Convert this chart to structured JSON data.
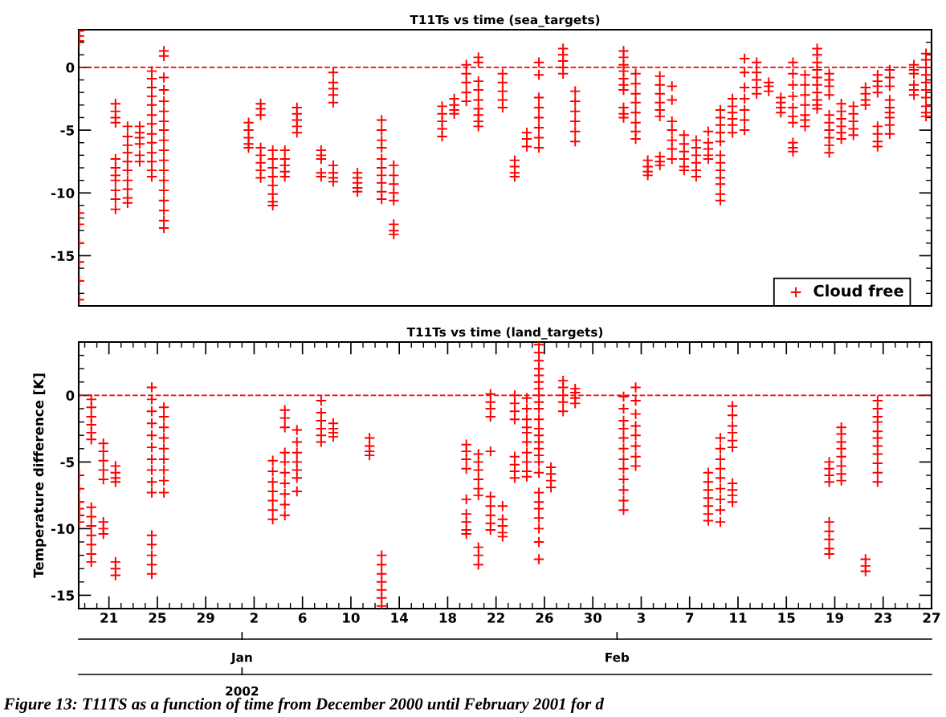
{
  "chart_data": [
    {
      "type": "scatter",
      "title": "T11Ts vs time (sea_targets)",
      "marker": "cross",
      "legend": "bottom right",
      "tick_labels": "y",
      "xlim": [
        "2001-12-18T12:00",
        "2002-02-27T00:00"
      ],
      "ylim": [
        -19,
        3
      ],
      "yticks": [
        -15,
        -10,
        -5,
        0
      ],
      "ref_lines": [
        {
          "axis": "y",
          "value": 0,
          "color": "#ff0000",
          "line_style": "dashed"
        }
      ],
      "series": [
        {
          "name": "Cloud free",
          "color": "#ff0000",
          "x": [
            "2001-12-18T13:00",
            "2001-12-18T13:00",
            "2001-12-18T13:00",
            "2001-12-18T13:00",
            "2001-12-18T13:00",
            "2001-12-18T13:00",
            "2001-12-18T13:00",
            "2001-12-18T13:00",
            "2001-12-18T13:00",
            "2001-12-21T13:00",
            "2001-12-21T13:00",
            "2001-12-21T13:00",
            "2001-12-21T13:00",
            "2001-12-21T13:00",
            "2001-12-21T13:00",
            "2001-12-21T13:00",
            "2001-12-21T13:00",
            "2001-12-21T13:00",
            "2001-12-21T13:00",
            "2001-12-21T13:00",
            "2001-12-22T13:00",
            "2001-12-22T13:00",
            "2001-12-22T13:00",
            "2001-12-22T13:00",
            "2001-12-22T13:00",
            "2001-12-22T13:00",
            "2001-12-22T13:00",
            "2001-12-22T13:00",
            "2001-12-22T13:00",
            "2001-12-22T13:00",
            "2001-12-23T13:00",
            "2001-12-23T13:00",
            "2001-12-23T13:00",
            "2001-12-23T13:00",
            "2001-12-23T13:00",
            "2001-12-23T13:00",
            "2001-12-24T13:00",
            "2001-12-24T13:00",
            "2001-12-24T13:00",
            "2001-12-24T13:00",
            "2001-12-24T13:00",
            "2001-12-24T13:00",
            "2001-12-24T13:00",
            "2001-12-24T13:00",
            "2001-12-24T13:00",
            "2001-12-24T13:00",
            "2001-12-24T13:00",
            "2001-12-24T13:00",
            "2001-12-24T13:00",
            "2001-12-25T13:00",
            "2001-12-25T13:00",
            "2001-12-25T13:00",
            "2001-12-25T13:00",
            "2001-12-25T13:00",
            "2001-12-25T13:00",
            "2001-12-25T13:00",
            "2001-12-25T13:00",
            "2001-12-25T13:00",
            "2001-12-25T13:00",
            "2001-12-25T13:00",
            "2001-12-25T13:00",
            "2001-12-25T13:00",
            "2001-12-25T13:00",
            "2001-12-25T13:00",
            "2001-12-25T13:00",
            "2001-12-25T13:00",
            "2001-12-25T13:00",
            "2002-01-01T13:00",
            "2002-01-01T13:00",
            "2002-01-01T13:00",
            "2002-01-01T13:00",
            "2002-01-01T13:00",
            "2002-01-02T13:00",
            "2002-01-02T13:00",
            "2002-01-02T13:00",
            "2002-01-02T13:00",
            "2002-01-02T13:00",
            "2002-01-02T13:00",
            "2002-01-02T13:00",
            "2002-01-02T13:00",
            "2002-01-03T13:00",
            "2002-01-03T13:00",
            "2002-01-03T13:00",
            "2002-01-03T13:00",
            "2002-01-03T13:00",
            "2002-01-03T13:00",
            "2002-01-03T13:00",
            "2002-01-03T13:00",
            "2002-01-04T13:00",
            "2002-01-04T13:00",
            "2002-01-04T13:00",
            "2002-01-04T13:00",
            "2002-01-04T13:00",
            "2002-01-05T13:00",
            "2002-01-05T13:00",
            "2002-01-05T13:00",
            "2002-01-05T13:00",
            "2002-01-05T13:00",
            "2002-01-07T13:00",
            "2002-01-07T13:00",
            "2002-01-07T13:00",
            "2002-01-07T13:00",
            "2002-01-07T13:00",
            "2002-01-08T13:00",
            "2002-01-08T13:00",
            "2002-01-08T13:00",
            "2002-01-08T13:00",
            "2002-01-08T13:00",
            "2002-01-08T13:00",
            "2002-01-08T13:00",
            "2002-01-08T13:00",
            "2002-01-08T13:00",
            "2002-01-10T13:00",
            "2002-01-10T13:00",
            "2002-01-10T13:00",
            "2002-01-10T13:00",
            "2002-01-10T13:00",
            "2002-01-12T13:00",
            "2002-01-12T13:00",
            "2002-01-12T13:00",
            "2002-01-12T13:00",
            "2002-01-12T13:00",
            "2002-01-12T13:00",
            "2002-01-12T13:00",
            "2002-01-12T13:00",
            "2002-01-12T13:00",
            "2002-01-12T13:00",
            "2002-01-13T13:00",
            "2002-01-13T13:00",
            "2002-01-13T13:00",
            "2002-01-13T13:00",
            "2002-01-13T13:00",
            "2002-01-13T13:00",
            "2002-01-13T13:00",
            "2002-01-13T13:00",
            "2002-01-17T13:00",
            "2002-01-17T13:00",
            "2002-01-17T13:00",
            "2002-01-17T13:00",
            "2002-01-17T13:00",
            "2002-01-18T13:00",
            "2002-01-18T13:00",
            "2002-01-18T13:00",
            "2002-01-18T13:00",
            "2002-01-19T13:00",
            "2002-01-19T13:00",
            "2002-01-19T13:00",
            "2002-01-19T13:00",
            "2002-01-19T13:00",
            "2002-01-20T13:00",
            "2002-01-20T13:00",
            "2002-01-20T13:00",
            "2002-01-20T13:00",
            "2002-01-20T13:00",
            "2002-01-20T13:00",
            "2002-01-20T13:00",
            "2002-01-20T13:00",
            "2002-01-20T13:00",
            "2002-01-22T13:00",
            "2002-01-22T13:00",
            "2002-01-22T13:00",
            "2002-01-22T13:00",
            "2002-01-22T13:00",
            "2002-01-23T13:00",
            "2002-01-23T13:00",
            "2002-01-23T13:00",
            "2002-01-23T13:00",
            "2002-01-24T13:00",
            "2002-01-24T13:00",
            "2002-01-24T13:00",
            "2002-01-25T13:00",
            "2002-01-25T13:00",
            "2002-01-25T13:00",
            "2002-01-25T13:00",
            "2002-01-25T13:00",
            "2002-01-25T13:00",
            "2002-01-25T13:00",
            "2002-01-25T13:00",
            "2002-01-27T13:00",
            "2002-01-27T13:00",
            "2002-01-27T13:00",
            "2002-01-27T13:00",
            "2002-01-27T13:00",
            "2002-01-28T13:00",
            "2002-01-28T13:00",
            "2002-01-28T13:00",
            "2002-01-28T13:00",
            "2002-01-28T13:00",
            "2002-01-28T13:00",
            "2002-02-01T13:00",
            "2002-02-01T13:00",
            "2002-02-01T13:00",
            "2002-02-01T13:00",
            "2002-02-01T13:00",
            "2002-02-01T13:00",
            "2002-02-01T13:00",
            "2002-02-01T13:00",
            "2002-02-01T13:00",
            "2002-02-01T13:00",
            "2002-02-02T13:00",
            "2002-02-02T13:00",
            "2002-02-02T13:00",
            "2002-02-02T13:00",
            "2002-02-02T13:00",
            "2002-02-02T13:00",
            "2002-02-02T13:00",
            "2002-02-02T13:00",
            "2002-02-03T13:00",
            "2002-02-03T13:00",
            "2002-02-03T13:00",
            "2002-02-03T13:00",
            "2002-02-04T13:00",
            "2002-02-04T13:00",
            "2002-02-04T13:00",
            "2002-02-04T13:00",
            "2002-02-04T13:00",
            "2002-02-04T13:00",
            "2002-02-04T13:00",
            "2002-02-04T13:00",
            "2002-02-04T13:00",
            "2002-02-05T13:00",
            "2002-02-05T13:00",
            "2002-02-05T13:00",
            "2002-02-05T13:00",
            "2002-02-05T13:00",
            "2002-02-05T13:00",
            "2002-02-05T13:00",
            "2002-02-06T13:00",
            "2002-02-06T13:00",
            "2002-02-06T13:00",
            "2002-02-06T13:00",
            "2002-02-06T13:00",
            "2002-02-06T13:00",
            "2002-02-07T13:00",
            "2002-02-07T13:00",
            "2002-02-07T13:00",
            "2002-02-07T13:00",
            "2002-02-07T13:00",
            "2002-02-07T13:00",
            "2002-02-08T13:00",
            "2002-02-08T13:00",
            "2002-02-08T13:00",
            "2002-02-08T13:00",
            "2002-02-08T13:00",
            "2002-02-09T13:00",
            "2002-02-09T13:00",
            "2002-02-09T13:00",
            "2002-02-09T13:00",
            "2002-02-09T13:00",
            "2002-02-09T13:00",
            "2002-02-09T13:00",
            "2002-02-09T13:00",
            "2002-02-09T13:00",
            "2002-02-09T13:00",
            "2002-02-09T13:00",
            "2002-02-09T13:00",
            "2002-02-10T13:00",
            "2002-02-10T13:00",
            "2002-02-10T13:00",
            "2002-02-10T13:00",
            "2002-02-10T13:00",
            "2002-02-10T13:00",
            "2002-02-11T13:00",
            "2002-02-11T13:00",
            "2002-02-11T13:00",
            "2002-02-11T13:00",
            "2002-02-11T13:00",
            "2002-02-11T13:00",
            "2002-02-11T13:00",
            "2002-02-12T13:00",
            "2002-02-12T13:00",
            "2002-02-12T13:00",
            "2002-02-12T13:00",
            "2002-02-12T13:00",
            "2002-02-13T13:00",
            "2002-02-13T13:00",
            "2002-02-13T13:00",
            "2002-02-14T13:00",
            "2002-02-14T13:00",
            "2002-02-14T13:00",
            "2002-02-14T13:00",
            "2002-02-15T13:00",
            "2002-02-15T13:00",
            "2002-02-15T13:00",
            "2002-02-15T13:00",
            "2002-02-15T13:00",
            "2002-02-15T13:00",
            "2002-02-15T13:00",
            "2002-02-15T13:00",
            "2002-02-15T13:00",
            "2002-02-15T13:00",
            "2002-02-16T13:00",
            "2002-02-16T13:00",
            "2002-02-16T13:00",
            "2002-02-16T13:00",
            "2002-02-16T13:00",
            "2002-02-16T13:00",
            "2002-02-16T13:00",
            "2002-02-17T13:00",
            "2002-02-17T13:00",
            "2002-02-17T13:00",
            "2002-02-17T13:00",
            "2002-02-17T13:00",
            "2002-02-17T13:00",
            "2002-02-17T13:00",
            "2002-02-17T13:00",
            "2002-02-17T13:00",
            "2002-02-17T13:00",
            "2002-02-18T13:00",
            "2002-02-18T13:00",
            "2002-02-18T13:00",
            "2002-02-18T13:00",
            "2002-02-18T13:00",
            "2002-02-18T13:00",
            "2002-02-18T13:00",
            "2002-02-18T13:00",
            "2002-02-18T13:00",
            "2002-02-18T13:00",
            "2002-02-19T13:00",
            "2002-02-19T13:00",
            "2002-02-19T13:00",
            "2002-02-19T13:00",
            "2002-02-19T13:00",
            "2002-02-19T13:00",
            "2002-02-20T13:00",
            "2002-02-20T13:00",
            "2002-02-20T13:00",
            "2002-02-20T13:00",
            "2002-02-20T13:00",
            "2002-02-21T13:00",
            "2002-02-21T13:00",
            "2002-02-21T13:00",
            "2002-02-21T13:00",
            "2002-02-22T13:00",
            "2002-02-22T13:00",
            "2002-02-22T13:00",
            "2002-02-22T13:00",
            "2002-02-22T13:00",
            "2002-02-22T13:00",
            "2002-02-22T13:00",
            "2002-02-22T13:00",
            "2002-02-23T13:00",
            "2002-02-23T13:00",
            "2002-02-23T13:00",
            "2002-02-23T13:00",
            "2002-02-23T13:00",
            "2002-02-23T13:00",
            "2002-02-23T13:00",
            "2002-02-23T13:00",
            "2002-02-23T13:00",
            "2002-02-25T13:00",
            "2002-02-25T13:00",
            "2002-02-25T13:00",
            "2002-02-25T13:00",
            "2002-02-25T13:00",
            "2002-02-25T13:00",
            "2002-02-26T13:00",
            "2002-02-26T13:00",
            "2002-02-26T13:00",
            "2002-02-26T13:00",
            "2002-02-26T13:00",
            "2002-02-26T13:00",
            "2002-02-26T13:00",
            "2002-02-26T13:00",
            "2002-02-26T13:00",
            "2002-02-26T13:00"
          ],
          "values": [
            2.9,
            2.5,
            2.1,
            -11.6,
            -12.5,
            -14,
            -15.5,
            -17,
            -18.5,
            -2.9,
            -3.5,
            -4.0,
            -4.4,
            -7.3,
            -8.0,
            -8.6,
            -9.0,
            -9.8,
            -10.5,
            -11.3,
            -4.7,
            -5.5,
            -6.2,
            -6.8,
            -7.5,
            -8.2,
            -9.0,
            -9.7,
            -10.4,
            -10.8,
            -4.7,
            -5.2,
            -5.6,
            -6.1,
            -7.0,
            -7.5,
            -0.3,
            -0.9,
            -1.6,
            -2.3,
            -3,
            -3.8,
            -4.5,
            -5.3,
            -6,
            -6.8,
            -7.5,
            -8.2,
            -8.7,
            1.3,
            0.9,
            -0.8,
            -1.8,
            -2.7,
            -3.5,
            -4.3,
            -5,
            -5.8,
            -6.6,
            -7.4,
            -8.2,
            -9,
            -9.8,
            -10.6,
            -11.4,
            -12.2,
            -12.8,
            -4.4,
            -5,
            -5.6,
            -6.1,
            -6.4,
            -2.9,
            -3.3,
            -3.8,
            -6.4,
            -7.0,
            -7.6,
            -8.2,
            -8.8,
            -6.6,
            -7.3,
            -8,
            -8.7,
            -9.4,
            -10.1,
            -10.7,
            -11,
            -6.6,
            -7.3,
            -7.8,
            -8.3,
            -8.7,
            -3.2,
            -3.7,
            -4.2,
            -4.7,
            -5.2,
            -6.6,
            -7,
            -7.3,
            -8.4,
            -8.7,
            -0.4,
            -1.2,
            -1.7,
            -2.2,
            -2.8,
            -7.8,
            -8.4,
            -8.8,
            -9.1,
            -8.4,
            -8.8,
            -9.2,
            -9.6,
            -9.9,
            -4.2,
            -5,
            -5.8,
            -6.4,
            -7.3,
            -8,
            -8.6,
            -9.2,
            -9.9,
            -10.5,
            -7.8,
            -8.6,
            -9.3,
            -10,
            -10.6,
            -12.5,
            -13,
            -13.3,
            -3.1,
            -3.7,
            -4.3,
            -4.9,
            -5.5,
            -2.5,
            -3,
            -3.4,
            -3.7,
            0.2,
            -0.5,
            -1.2,
            -2,
            -2.7,
            0.8,
            0.4,
            -1.1,
            -1.8,
            -2.6,
            -3.3,
            -3.8,
            -4.3,
            -4.7,
            -0.5,
            -1.2,
            -1.9,
            -2.6,
            -3.2,
            -7.4,
            -7.9,
            -8.4,
            -8.7,
            -5.2,
            -5.7,
            -6.3,
            0.4,
            -0.6,
            -2.4,
            -3.2,
            -4,
            -4.8,
            -5.6,
            -6.4,
            1.5,
            1,
            0.5,
            0,
            -0.5,
            -1.9,
            -2.7,
            -3.5,
            -4.3,
            -5.1,
            -5.9,
            1.3,
            0.8,
            0.2,
            -0.3,
            -0.9,
            -1.4,
            -1.8,
            -3.2,
            -3.7,
            -4,
            -0.5,
            -1.3,
            -2.1,
            -2.8,
            -3.6,
            -4.4,
            -5.1,
            -5.7,
            -7.4,
            -7.9,
            -8.3,
            -8.6,
            -0.7,
            -1.4,
            -2.1,
            -2.8,
            -3.4,
            -3.9,
            -7.1,
            -7.5,
            -7.8,
            -1.5,
            -2.6,
            -4.3,
            -5,
            -5.8,
            -6.5,
            -7.3,
            -5.4,
            -6.1,
            -6.7,
            -7.3,
            -7.9,
            -8.2,
            -5.8,
            -6.4,
            -7,
            -7.6,
            -8.2,
            -8.7,
            -5.1,
            -6,
            -6.5,
            -7,
            -7.3,
            -3.4,
            -4,
            -4.6,
            -5.2,
            -5.9,
            -7,
            -7.6,
            -8.2,
            -8.8,
            -9.3,
            -10.1,
            -10.6,
            -2.5,
            -3.1,
            -3.6,
            -4.1,
            -4.6,
            -5.2,
            0.7,
            -0.4,
            -1.6,
            -2.5,
            -3.4,
            -4.2,
            -5,
            0.4,
            -0.4,
            -1,
            -1.6,
            -2.1,
            -1.2,
            -1.5,
            -1.9,
            -2.4,
            -2.8,
            -3.2,
            -3.6,
            0.4,
            -0.5,
            -1.4,
            -2.3,
            -3.2,
            -3.9,
            -4.4,
            -6,
            -6.4,
            -6.7,
            -0.6,
            -1.4,
            -2.2,
            -3,
            -3.8,
            -4.2,
            -4.7,
            1.5,
            1,
            0.4,
            -0.2,
            -0.8,
            -1.4,
            -2,
            -2.6,
            -3,
            -3.3,
            -0.5,
            -1,
            -1.5,
            -2.2,
            -3.8,
            -4.4,
            -5,
            -5.6,
            -6.2,
            -6.8,
            -2.9,
            -3.5,
            -4.1,
            -4.7,
            -5.2,
            -5.7,
            -3.1,
            -3.7,
            -4.3,
            -4.9,
            -5.4,
            -1.6,
            -2.1,
            -2.6,
            -3.0,
            -0.6,
            -1.1,
            -1.5,
            -2,
            -4.7,
            -5.3,
            -5.9,
            -6.3,
            -0.2,
            -0.8,
            -1.5,
            -2.6,
            -3.2,
            -3.6,
            -4,
            -4.6,
            -5.3,
            0.2,
            -0.2,
            -0.5,
            -1.4,
            -1.8,
            -2.2,
            1.1,
            0.6,
            0,
            -0.6,
            -1.2,
            -1.8,
            -2.4,
            -3.1,
            -3.6,
            -3.9
          ]
        }
      ]
    },
    {
      "type": "scatter",
      "title": "T11Ts vs time (land_targets)",
      "ylabel": "Temperature difference [K]",
      "marker": "cross",
      "xlim": [
        "2001-12-18T12:00",
        "2002-02-27T00:00"
      ],
      "ylim": [
        -16,
        4
      ],
      "yticks": [
        -15,
        -10,
        -5,
        0
      ],
      "xticks": [
        {
          "value": "2001-12-21",
          "label": "21"
        },
        {
          "value": "2001-12-25",
          "label": "25"
        },
        {
          "value": "2001-12-29",
          "label": "29"
        },
        {
          "value": "2002-01-02",
          "label": "2"
        },
        {
          "value": "2002-01-06",
          "label": "6"
        },
        {
          "value": "2002-01-10",
          "label": "10"
        },
        {
          "value": "2002-01-14",
          "label": "14"
        },
        {
          "value": "2002-01-18",
          "label": "18"
        },
        {
          "value": "2002-01-22",
          "label": "22"
        },
        {
          "value": "2002-01-26",
          "label": "26"
        },
        {
          "value": "2002-01-30",
          "label": "30"
        },
        {
          "value": "2002-02-03",
          "label": "3"
        },
        {
          "value": "2002-02-07",
          "label": "7"
        },
        {
          "value": "2002-02-11",
          "label": "11"
        },
        {
          "value": "2002-02-15",
          "label": "15"
        },
        {
          "value": "2002-02-19",
          "label": "19"
        },
        {
          "value": "2002-02-23",
          "label": "23"
        },
        {
          "value": "2002-02-27",
          "label": "27"
        }
      ],
      "ref_lines": [
        {
          "axis": "y",
          "value": 0,
          "color": "#ff0000",
          "line_style": "dashed"
        }
      ],
      "annotations": [
        "Jan",
        "Feb",
        "2002",
        "Figure 13: T11TS as a function of time from December 2000 until February 2001 for d"
      ],
      "series": [
        {
          "color": "#ff0000",
          "x": [
            "2001-12-18T13:00",
            "2001-12-18T13:00",
            "2001-12-18T13:00",
            "2001-12-18T13:00",
            "2001-12-18T13:00",
            "2001-12-18T13:00",
            "2001-12-19T13:00",
            "2001-12-19T13:00",
            "2001-12-19T13:00",
            "2001-12-19T13:00",
            "2001-12-19T13:00",
            "2001-12-19T13:00",
            "2001-12-19T13:00",
            "2001-12-19T13:00",
            "2001-12-19T13:00",
            "2001-12-19T13:00",
            "2001-12-19T13:00",
            "2001-12-19T13:00",
            "2001-12-19T13:00",
            "2001-12-20T13:00",
            "2001-12-20T13:00",
            "2001-12-20T13:00",
            "2001-12-20T13:00",
            "2001-12-20T13:00",
            "2001-12-20T13:00",
            "2001-12-20T13:00",
            "2001-12-20T13:00",
            "2001-12-21T13:00",
            "2001-12-21T13:00",
            "2001-12-21T13:00",
            "2001-12-21T13:00",
            "2001-12-21T13:00",
            "2001-12-21T13:00",
            "2001-12-21T13:00",
            "2001-12-24T13:00",
            "2001-12-24T13:00",
            "2001-12-24T13:00",
            "2001-12-24T13:00",
            "2001-12-24T13:00",
            "2001-12-24T13:00",
            "2001-12-24T13:00",
            "2001-12-24T13:00",
            "2001-12-24T13:00",
            "2001-12-24T13:00",
            "2001-12-24T13:00",
            "2001-12-24T13:00",
            "2001-12-24T13:00",
            "2001-12-24T13:00",
            "2001-12-24T13:00",
            "2001-12-25T13:00",
            "2001-12-25T13:00",
            "2001-12-25T13:00",
            "2001-12-25T13:00",
            "2001-12-25T13:00",
            "2001-12-25T13:00",
            "2001-12-25T13:00",
            "2001-12-25T13:00",
            "2001-12-25T13:00",
            "2002-01-03T13:00",
            "2002-01-03T13:00",
            "2002-01-03T13:00",
            "2002-01-03T13:00",
            "2002-01-03T13:00",
            "2002-01-03T13:00",
            "2002-01-03T13:00",
            "2002-01-04T13:00",
            "2002-01-04T13:00",
            "2002-01-04T13:00",
            "2002-01-04T13:00",
            "2002-01-04T13:00",
            "2002-01-04T13:00",
            "2002-01-04T13:00",
            "2002-01-04T13:00",
            "2002-01-04T13:00",
            "2002-01-04T13:00",
            "2002-01-05T13:00",
            "2002-01-05T13:00",
            "2002-01-05T13:00",
            "2002-01-05T13:00",
            "2002-01-05T13:00",
            "2002-01-05T13:00",
            "2002-01-05T13:00",
            "2002-01-07T13:00",
            "2002-01-07T13:00",
            "2002-01-07T13:00",
            "2002-01-07T13:00",
            "2002-01-07T13:00",
            "2002-01-07T13:00",
            "2002-01-08T13:00",
            "2002-01-08T13:00",
            "2002-01-08T13:00",
            "2002-01-08T13:00",
            "2002-01-11T13:00",
            "2002-01-11T13:00",
            "2002-01-11T13:00",
            "2002-01-11T13:00",
            "2002-01-12T13:00",
            "2002-01-12T13:00",
            "2002-01-12T13:00",
            "2002-01-12T13:00",
            "2002-01-12T13:00",
            "2002-01-12T13:00",
            "2002-01-12T13:00",
            "2002-01-19T13:00",
            "2002-01-19T13:00",
            "2002-01-19T13:00",
            "2002-01-19T13:00",
            "2002-01-19T13:00",
            "2002-01-19T13:00",
            "2002-01-19T13:00",
            "2002-01-19T13:00",
            "2002-01-19T13:00",
            "2002-01-20T13:00",
            "2002-01-20T13:00",
            "2002-01-20T13:00",
            "2002-01-20T13:00",
            "2002-01-20T13:00",
            "2002-01-20T13:00",
            "2002-01-20T13:00",
            "2002-01-20T13:00",
            "2002-01-20T13:00",
            "2002-01-21T13:00",
            "2002-01-21T13:00",
            "2002-01-21T13:00",
            "2002-01-21T13:00",
            "2002-01-21T13:00",
            "2002-01-21T13:00",
            "2002-01-21T13:00",
            "2002-01-21T13:00",
            "2002-01-21T13:00",
            "2002-01-21T13:00",
            "2002-01-22T13:00",
            "2002-01-22T13:00",
            "2002-01-22T13:00",
            "2002-01-22T13:00",
            "2002-01-22T13:00",
            "2002-01-23T13:00",
            "2002-01-23T13:00",
            "2002-01-23T13:00",
            "2002-01-23T13:00",
            "2002-01-23T13:00",
            "2002-01-23T13:00",
            "2002-01-23T13:00",
            "2002-01-23T13:00",
            "2002-01-24T13:00",
            "2002-01-24T13:00",
            "2002-01-24T13:00",
            "2002-01-24T13:00",
            "2002-01-24T13:00",
            "2002-01-24T13:00",
            "2002-01-24T13:00",
            "2002-01-24T13:00",
            "2002-01-24T13:00",
            "2002-01-24T13:00",
            "2002-01-25T13:00",
            "2002-01-25T13:00",
            "2002-01-25T13:00",
            "2002-01-25T13:00",
            "2002-01-25T13:00",
            "2002-01-25T13:00",
            "2002-01-25T13:00",
            "2002-01-25T13:00",
            "2002-01-25T13:00",
            "2002-01-25T13:00",
            "2002-01-25T13:00",
            "2002-01-25T13:00",
            "2002-01-25T13:00",
            "2002-01-25T13:00",
            "2002-01-25T13:00",
            "2002-01-25T13:00",
            "2002-01-25T13:00",
            "2002-01-25T13:00",
            "2002-01-25T13:00",
            "2002-01-25T13:00",
            "2002-01-25T13:00",
            "2002-01-25T13:00",
            "2002-01-25T13:00",
            "2002-01-25T13:00",
            "2002-01-25T13:00",
            "2002-01-26T13:00",
            "2002-01-26T13:00",
            "2002-01-26T13:00",
            "2002-01-26T13:00",
            "2002-01-27T13:00",
            "2002-01-27T13:00",
            "2002-01-27T13:00",
            "2002-01-27T13:00",
            "2002-01-27T13:00",
            "2002-01-28T13:00",
            "2002-01-28T13:00",
            "2002-01-28T13:00",
            "2002-01-28T13:00",
            "2002-02-01T13:00",
            "2002-02-01T13:00",
            "2002-02-01T13:00",
            "2002-02-01T13:00",
            "2002-02-01T13:00",
            "2002-02-01T13:00",
            "2002-02-01T13:00",
            "2002-02-01T13:00",
            "2002-02-01T13:00",
            "2002-02-01T13:00",
            "2002-02-01T13:00",
            "2002-02-01T13:00",
            "2002-02-02T13:00",
            "2002-02-02T13:00",
            "2002-02-02T13:00",
            "2002-02-02T13:00",
            "2002-02-02T13:00",
            "2002-02-02T13:00",
            "2002-02-02T13:00",
            "2002-02-02T13:00",
            "2002-02-08T13:00",
            "2002-02-08T13:00",
            "2002-02-08T13:00",
            "2002-02-08T13:00",
            "2002-02-08T13:00",
            "2002-02-08T13:00",
            "2002-02-08T13:00",
            "2002-02-09T13:00",
            "2002-02-09T13:00",
            "2002-02-09T13:00",
            "2002-02-09T13:00",
            "2002-02-09T13:00",
            "2002-02-09T13:00",
            "2002-02-09T13:00",
            "2002-02-09T13:00",
            "2002-02-09T13:00",
            "2002-02-10T13:00",
            "2002-02-10T13:00",
            "2002-02-10T13:00",
            "2002-02-10T13:00",
            "2002-02-10T13:00",
            "2002-02-10T13:00",
            "2002-02-10T13:00",
            "2002-02-10T13:00",
            "2002-02-10T13:00",
            "2002-02-10T13:00",
            "2002-02-18T13:00",
            "2002-02-18T13:00",
            "2002-02-18T13:00",
            "2002-02-18T13:00",
            "2002-02-18T13:00",
            "2002-02-18T13:00",
            "2002-02-18T13:00",
            "2002-02-18T13:00",
            "2002-02-18T13:00",
            "2002-02-19T13:00",
            "2002-02-19T13:00",
            "2002-02-19T13:00",
            "2002-02-19T13:00",
            "2002-02-19T13:00",
            "2002-02-19T13:00",
            "2002-02-19T13:00",
            "2002-02-19T13:00",
            "2002-02-21T13:00",
            "2002-02-21T13:00",
            "2002-02-21T13:00",
            "2002-02-22T13:00",
            "2002-02-22T13:00",
            "2002-02-22T13:00",
            "2002-02-22T13:00",
            "2002-02-22T13:00",
            "2002-02-22T13:00",
            "2002-02-22T13:00",
            "2002-02-22T13:00",
            "2002-02-22T13:00",
            "2002-02-22T13:00",
            "2002-02-22T13:00"
          ],
          "values": [
            -6,
            -7,
            -8,
            -8.5,
            -9,
            -9.5,
            -0.3,
            -0.9,
            -1.6,
            -2.2,
            -2.8,
            -3.3,
            -8.4,
            -9.1,
            -9.8,
            -10.5,
            -11.2,
            -11.9,
            -12.5,
            -3.6,
            -4.2,
            -4.9,
            -5.6,
            -6.3,
            -9.5,
            -10,
            -10.4,
            -5.3,
            -5.8,
            -6.2,
            -6.5,
            -12.5,
            -13,
            -13.5,
            0.6,
            -0.3,
            -1.2,
            -2.1,
            -3,
            -3.9,
            -4.8,
            -5.6,
            -6.5,
            -7.3,
            -10.5,
            -11.2,
            -12,
            -12.7,
            -13.4,
            -0.9,
            -1.6,
            -2.4,
            -3.2,
            -4,
            -4.8,
            -5.6,
            -6.4,
            -7.3,
            -4.9,
            -5.7,
            -6.5,
            -7.2,
            -7.9,
            -8.6,
            -9.3,
            -1.1,
            -1.7,
            -2.4,
            -4.3,
            -5,
            -5.8,
            -6.6,
            -7.4,
            -8.2,
            -9,
            -2.6,
            -3.5,
            -4.3,
            -5,
            -5.6,
            -6.2,
            -7.2,
            -0.4,
            -1.3,
            -1.9,
            -2.5,
            -3,
            -3.5,
            -2.1,
            -2.5,
            -2.8,
            -3.1,
            -3.2,
            -3.8,
            -4.2,
            -4.5,
            -12,
            -12.7,
            -13.4,
            -14,
            -14.6,
            -15.2,
            -15.8,
            -3.7,
            -4.2,
            -4.8,
            -5.5,
            -7.8,
            -8.9,
            -9.5,
            -10.1,
            -10.4,
            -4.4,
            -5,
            -5.6,
            -6.3,
            -7,
            -7.5,
            -11.4,
            -12,
            -12.7,
            0.1,
            -0.5,
            -1,
            -1.6,
            -4.2,
            -7.6,
            -8.3,
            -9,
            -9.6,
            -10.1,
            -8.3,
            -9.3,
            -9.8,
            -10.3,
            -10.6,
            0,
            -0.6,
            -1.2,
            -1.8,
            -4.6,
            -5.2,
            -5.7,
            -6.2,
            -0.2,
            -1,
            -1.8,
            -2.4,
            -2.8,
            -3.5,
            -4.3,
            -5,
            -5.7,
            -6.1,
            3.8,
            3.2,
            2.6,
            2,
            1.5,
            1,
            0.5,
            0,
            -0.5,
            -1,
            -1.8,
            -2.5,
            -3,
            -3.5,
            -4,
            -4.5,
            -5,
            -5.8,
            -7.3,
            -8,
            -8.5,
            -9.2,
            -10,
            -11,
            -12.3,
            -5.4,
            -5.9,
            -6.4,
            -6.9,
            1.1,
            0.6,
            0,
            -0.5,
            -1.2,
            0.5,
            0.2,
            -0.2,
            -0.6,
            -0.1,
            -1,
            -1.9,
            -2.5,
            -3.2,
            -4,
            -4.8,
            -5.5,
            -6.3,
            -7.1,
            -7.9,
            -8.6,
            0.6,
            -0.4,
            -1.4,
            -2.3,
            -3,
            -3.8,
            -4.6,
            -5.3,
            -5.8,
            -6.5,
            -7.1,
            -7.7,
            -8.3,
            -8.9,
            -9.4,
            -3.2,
            -4,
            -4.8,
            -5.5,
            -6.2,
            -7,
            -7.8,
            -8.6,
            -9.5,
            -0.8,
            -1.5,
            -2.3,
            -2.8,
            -3.4,
            -3.9,
            -6.6,
            -7.1,
            -7.5,
            -8,
            -5,
            -5.5,
            -6,
            -6.5,
            -9.5,
            -10.2,
            -10.8,
            -11.5,
            -11.9,
            -2.4,
            -2.9,
            -3.5,
            -4,
            -4.6,
            -5.3,
            -5.9,
            -6.4,
            -12.3,
            -12.8,
            -13.2,
            -0.4,
            -1,
            -1.6,
            -2,
            -2.7,
            -3.2,
            -3.8,
            -4.4,
            -5.1,
            -5.8,
            -6.5
          ]
        }
      ]
    }
  ]
}
